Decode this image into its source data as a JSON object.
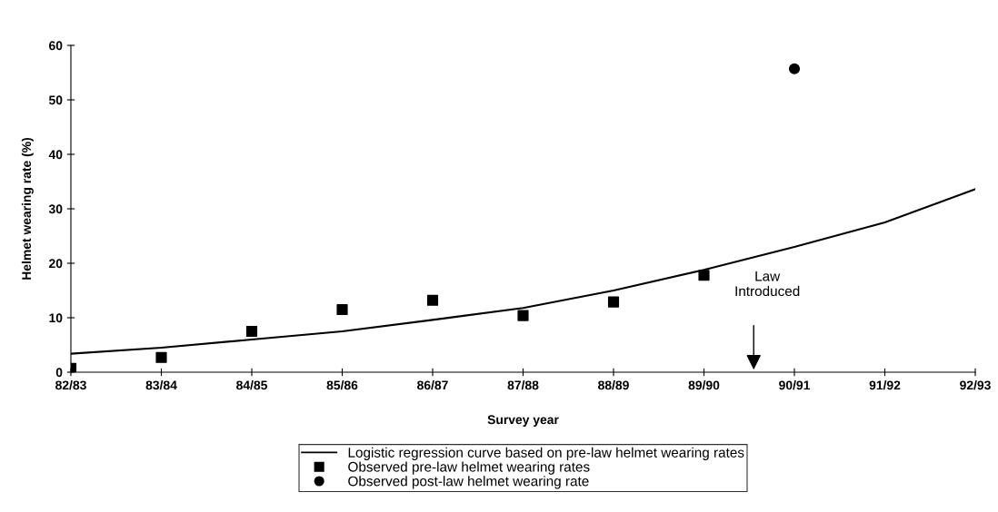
{
  "chart_data": {
    "type": "scatter",
    "xlabel": "Survey year",
    "ylabel": "Helmet wearing rate (%)",
    "categories": [
      "82/83",
      "83/84",
      "84/85",
      "85/86",
      "86/87",
      "87/88",
      "88/89",
      "89/90",
      "90/91",
      "91/92",
      "92/93"
    ],
    "ylim": [
      0,
      60
    ],
    "yticks": [
      0,
      10,
      20,
      30,
      40,
      50,
      60
    ],
    "grid": false,
    "legend": "bottom",
    "series": [
      {
        "name": "Logistic regression curve based on pre-law helmet wearing rates",
        "type": "line",
        "marker": "none",
        "line_style": "solid",
        "color": "#000000",
        "values": [
          3.4,
          4.5,
          6.0,
          7.5,
          9.6,
          11.8,
          15.0,
          18.8,
          23.0,
          27.5,
          33.6
        ]
      },
      {
        "name": "Observed pre-law helmet wearing rates",
        "marker": "square",
        "color": "#000000",
        "values": [
          0.7,
          2.7,
          7.5,
          11.5,
          13.2,
          10.4,
          12.9,
          17.8,
          null,
          null,
          null
        ]
      },
      {
        "name": "Observed post-law helmet wearing rate",
        "marker": "circle",
        "color": "#000000",
        "values": [
          null,
          null,
          null,
          null,
          null,
          null,
          null,
          null,
          55.7,
          null,
          null
        ]
      }
    ],
    "annotations": [
      "Law\nIntroduced"
    ]
  }
}
